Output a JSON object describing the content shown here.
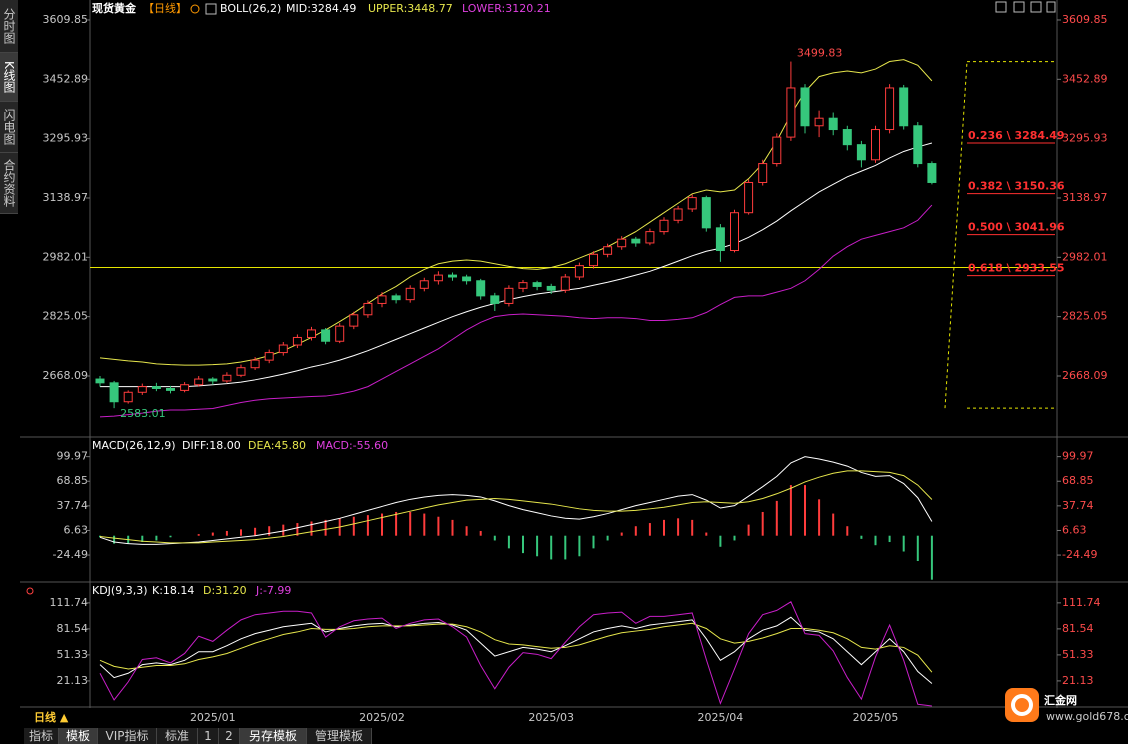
{
  "sidebar": [
    "分时图",
    "K线图",
    "闪电图",
    "合约资料"
  ],
  "main": {
    "type": "candlestick",
    "title": "现货黄金",
    "period": "【日线】",
    "indicator": "BOLL(26,2)",
    "readouts": [
      "MID:3284.49",
      "UPPER:3448.77",
      "LOWER:3120.21"
    ],
    "ylim": [
      2512,
      3623
    ],
    "yticks": [
      3609.85,
      3452.89,
      3295.93,
      3138.97,
      2982.01,
      2825.05,
      2668.09
    ],
    "categories": [
      null,
      null,
      null,
      null,
      null,
      null,
      null,
      null,
      "2025/01",
      null,
      null,
      null,
      null,
      null,
      null,
      null,
      null,
      null,
      null,
      null,
      "2025/02",
      null,
      null,
      null,
      null,
      null,
      null,
      null,
      null,
      null,
      null,
      null,
      "2025/03",
      null,
      null,
      null,
      null,
      null,
      null,
      null,
      null,
      null,
      null,
      null,
      "2025/04",
      null,
      null,
      null,
      null,
      null,
      null,
      null,
      null,
      null,
      null,
      "2025/05",
      null,
      null,
      null,
      null
    ],
    "up_color": "#ff3c3c",
    "down_color": "#36c77c",
    "candles": [
      [
        2660,
        2668,
        2640,
        2650
      ],
      [
        2650,
        2655,
        2583.01,
        2600
      ],
      [
        2600,
        2630,
        2595,
        2625
      ],
      [
        2625,
        2648,
        2618,
        2640
      ],
      [
        2640,
        2650,
        2628,
        2635
      ],
      [
        2635,
        2642,
        2622,
        2630
      ],
      [
        2630,
        2652,
        2625,
        2645
      ],
      [
        2645,
        2668,
        2640,
        2660
      ],
      [
        2660,
        2665,
        2645,
        2655
      ],
      [
        2655,
        2678,
        2650,
        2670
      ],
      [
        2670,
        2698,
        2665,
        2690
      ],
      [
        2690,
        2718,
        2684,
        2710
      ],
      [
        2710,
        2738,
        2702,
        2730
      ],
      [
        2730,
        2758,
        2722,
        2750
      ],
      [
        2750,
        2778,
        2742,
        2770
      ],
      [
        2770,
        2798,
        2762,
        2790
      ],
      [
        2790,
        2795,
        2752,
        2760
      ],
      [
        2760,
        2808,
        2755,
        2800
      ],
      [
        2800,
        2838,
        2792,
        2830
      ],
      [
        2830,
        2868,
        2822,
        2860
      ],
      [
        2860,
        2890,
        2850,
        2880
      ],
      [
        2880,
        2886,
        2860,
        2870
      ],
      [
        2870,
        2908,
        2862,
        2900
      ],
      [
        2900,
        2928,
        2892,
        2920
      ],
      [
        2920,
        2945,
        2910,
        2935
      ],
      [
        2935,
        2942,
        2920,
        2930
      ],
      [
        2930,
        2936,
        2910,
        2920
      ],
      [
        2920,
        2925,
        2870,
        2880
      ],
      [
        2880,
        2888,
        2840,
        2860
      ],
      [
        2860,
        2908,
        2852,
        2900
      ],
      [
        2900,
        2922,
        2890,
        2915
      ],
      [
        2915,
        2920,
        2895,
        2905
      ],
      [
        2905,
        2912,
        2885,
        2895
      ],
      [
        2895,
        2938,
        2888,
        2930
      ],
      [
        2930,
        2968,
        2922,
        2960
      ],
      [
        2960,
        2998,
        2952,
        2990
      ],
      [
        2990,
        3018,
        2982,
        3010
      ],
      [
        3010,
        3038,
        3002,
        3030
      ],
      [
        3030,
        3036,
        3010,
        3020
      ],
      [
        3020,
        3058,
        3014,
        3050
      ],
      [
        3050,
        3088,
        3042,
        3080
      ],
      [
        3080,
        3118,
        3072,
        3110
      ],
      [
        3110,
        3148,
        3102,
        3140
      ],
      [
        3140,
        3145,
        3050,
        3060
      ],
      [
        3060,
        3070,
        2970,
        3000
      ],
      [
        3000,
        3108,
        2995,
        3100
      ],
      [
        3100,
        3188,
        3095,
        3180
      ],
      [
        3180,
        3240,
        3172,
        3230
      ],
      [
        3230,
        3310,
        3222,
        3300
      ],
      [
        3300,
        3499.83,
        3290,
        3430
      ],
      [
        3430,
        3440,
        3310,
        3330
      ],
      [
        3330,
        3370,
        3300,
        3350
      ],
      [
        3350,
        3365,
        3305,
        3320
      ],
      [
        3320,
        3330,
        3265,
        3280
      ],
      [
        3280,
        3290,
        3220,
        3240
      ],
      [
        3240,
        3330,
        3232,
        3320
      ],
      [
        3320,
        3440,
        3310,
        3430
      ],
      [
        3430,
        3438,
        3320,
        3330
      ],
      [
        3330,
        3340,
        3220,
        3230
      ],
      [
        3230,
        3236,
        3175,
        3180
      ]
    ],
    "series": [
      {
        "color": "#ffffff",
        "values": [
          2640,
          2640,
          2640,
          2640,
          2640,
          2640,
          2640,
          2642,
          2645,
          2648,
          2652,
          2658,
          2665,
          2673,
          2682,
          2692,
          2700,
          2710,
          2722,
          2735,
          2750,
          2765,
          2780,
          2795,
          2810,
          2825,
          2838,
          2850,
          2860,
          2870,
          2878,
          2885,
          2890,
          2895,
          2900,
          2908,
          2916,
          2925,
          2935,
          2945,
          2958,
          2972,
          2986,
          2998,
          3006,
          3018,
          3035,
          3055,
          3078,
          3105,
          3130,
          3155,
          3175,
          3195,
          3210,
          3225,
          3245,
          3262,
          3274,
          3284.49
        ]
      },
      {
        "color": "#e6e64c",
        "values": [
          2716,
          2712,
          2708,
          2705,
          2700,
          2698,
          2697,
          2697,
          2698,
          2700,
          2705,
          2712,
          2722,
          2735,
          2752,
          2770,
          2790,
          2812,
          2835,
          2860,
          2885,
          2905,
          2930,
          2950,
          2965,
          2972,
          2975,
          2972,
          2965,
          2958,
          2952,
          2950,
          2955,
          2965,
          2980,
          2995,
          3010,
          3030,
          3050,
          3075,
          3100,
          3125,
          3150,
          3160,
          3155,
          3160,
          3190,
          3230,
          3290,
          3360,
          3420,
          3460,
          3470,
          3475,
          3470,
          3480,
          3500,
          3505,
          3490,
          3448.77
        ]
      },
      {
        "color": "#c81ec8",
        "values": [
          2560,
          2562,
          2566,
          2570,
          2575,
          2578,
          2578,
          2580,
          2582,
          2590,
          2598,
          2604,
          2608,
          2610,
          2612,
          2614,
          2615,
          2620,
          2628,
          2640,
          2660,
          2680,
          2700,
          2720,
          2740,
          2765,
          2790,
          2810,
          2825,
          2830,
          2832,
          2830,
          2828,
          2826,
          2822,
          2820,
          2822,
          2822,
          2820,
          2815,
          2815,
          2818,
          2822,
          2836,
          2857,
          2876,
          2880,
          2880,
          2890,
          2900,
          2920,
          2950,
          2985,
          3010,
          3030,
          3040,
          3050,
          3060,
          3080,
          3120.21
        ]
      }
    ],
    "annotations": [
      "3499.83",
      "2583.01"
    ],
    "hline": {
      "value": 2955,
      "color": "#e6e600"
    },
    "fib": {
      "color": "#ff3030",
      "box_color": "#e6e600",
      "levels": [
        {
          "value": 3284.49,
          "label": "0.236 \\ 3284.49"
        },
        {
          "value": 3150.36,
          "label": "0.382 \\ 3150.36"
        },
        {
          "value": 3041.96,
          "label": "0.500 \\ 3041.96"
        },
        {
          "value": 2933.55,
          "label": "0.618 \\ 2933.55"
        }
      ]
    }
  },
  "macd": {
    "type": "macd",
    "title": "MACD(26,12,9)",
    "readouts": [
      "DIFF:18.00",
      "DEA:45.80",
      "MACD:-55.60"
    ],
    "ylim": [
      -56,
      121
    ],
    "yticks": [
      99.97,
      68.85,
      37.74,
      6.63,
      -24.49
    ],
    "series": [
      {
        "color": "#ffffff",
        "values": [
          -2,
          -8,
          -10,
          -11,
          -11,
          -10,
          -9,
          -8,
          -6,
          -4,
          -2,
          0,
          3,
          6,
          10,
          14,
          18,
          22,
          27,
          32,
          37,
          42,
          46,
          49,
          51,
          52,
          51,
          49,
          44,
          38,
          33,
          29,
          25,
          22,
          21,
          24,
          28,
          33,
          38,
          42,
          46,
          50,
          52,
          45,
          35,
          38,
          50,
          62,
          75,
          92,
          100,
          97,
          93,
          88,
          80,
          75,
          76,
          66,
          48,
          18
        ]
      },
      {
        "color": "#e6e64c",
        "values": [
          -1,
          -3,
          -5,
          -7,
          -8,
          -9,
          -9,
          -9,
          -8,
          -7,
          -6,
          -5,
          -3,
          -1,
          2,
          5,
          8,
          11,
          15,
          19,
          23,
          27,
          31,
          35,
          39,
          42,
          45,
          46,
          47,
          46,
          44,
          42,
          40,
          37,
          34,
          32,
          31,
          31,
          32,
          34,
          36,
          39,
          42,
          43,
          42,
          41,
          43,
          47,
          53,
          60,
          68,
          74,
          79,
          82,
          82,
          81,
          80,
          76,
          64,
          45.8
        ]
      }
    ],
    "histogram": [
      -2,
      -10,
      -10,
      -8,
      -6,
      -2,
      0,
      2,
      4,
      6,
      8,
      10,
      12,
      14,
      16,
      18,
      20,
      22,
      24,
      26,
      28,
      30,
      30,
      28,
      24,
      20,
      12,
      6,
      -6,
      -16,
      -22,
      -26,
      -30,
      -30,
      -26,
      -16,
      -6,
      4,
      12,
      16,
      20,
      22,
      20,
      4,
      -14,
      -6,
      14,
      30,
      44,
      64,
      64,
      46,
      28,
      12,
      -4,
      -12,
      -8,
      -20,
      -32,
      -55.6
    ],
    "up_color": "#ff3c3c",
    "down_color": "#36c77c"
  },
  "kdj": {
    "type": "kdj",
    "title": "KDJ(9,3,3)",
    "readouts": [
      "K:18.14",
      "D:31.20",
      "J:-7.99"
    ],
    "ylim": [
      -8,
      129
    ],
    "yticks": [
      111.74,
      81.54,
      51.33,
      21.13
    ],
    "series": [
      {
        "color": "#ffffff",
        "values": [
          40,
          25,
          30,
          40,
          42,
          40,
          45,
          55,
          55,
          62,
          70,
          76,
          80,
          84,
          86,
          88,
          78,
          82,
          85,
          87,
          88,
          84,
          86,
          88,
          89,
          86,
          80,
          65,
          50,
          55,
          60,
          58,
          55,
          62,
          70,
          78,
          82,
          85,
          82,
          86,
          88,
          90,
          92,
          70,
          45,
          55,
          70,
          80,
          85,
          95,
          80,
          78,
          70,
          55,
          40,
          55,
          70,
          55,
          32,
          18.14
        ]
      },
      {
        "color": "#e6e64c",
        "values": [
          45,
          38,
          35,
          37,
          39,
          39,
          41,
          46,
          49,
          53,
          59,
          65,
          70,
          75,
          78,
          82,
          81,
          81,
          82,
          84,
          85,
          85,
          85,
          86,
          87,
          87,
          84,
          78,
          69,
          64,
          63,
          61,
          59,
          60,
          63,
          68,
          73,
          77,
          79,
          81,
          84,
          86,
          88,
          82,
          70,
          65,
          67,
          71,
          76,
          82,
          82,
          80,
          77,
          70,
          60,
          58,
          62,
          60,
          51,
          31.2
        ]
      },
      {
        "color": "#c81ec8",
        "values": [
          30,
          -1,
          20,
          46,
          48,
          42,
          53,
          73,
          67,
          80,
          92,
          98,
          100,
          102,
          102,
          100,
          72,
          84,
          91,
          93,
          94,
          82,
          88,
          92,
          93,
          84,
          72,
          39,
          12,
          37,
          54,
          52,
          47,
          66,
          84,
          98,
          100,
          101,
          88,
          96,
          96,
          98,
          100,
          46,
          -5,
          35,
          76,
          98,
          103,
          113,
          76,
          74,
          56,
          25,
          0,
          49,
          86,
          45,
          -6,
          -7.99
        ]
      }
    ]
  },
  "footer": {
    "period_button": "日线 ▲",
    "tabs": [
      "指标",
      "模板",
      "VIP指标",
      "标准",
      "1",
      "2",
      "另存模板",
      "管理模板"
    ],
    "logo": "汇金网",
    "site": "www.gold678.com"
  }
}
